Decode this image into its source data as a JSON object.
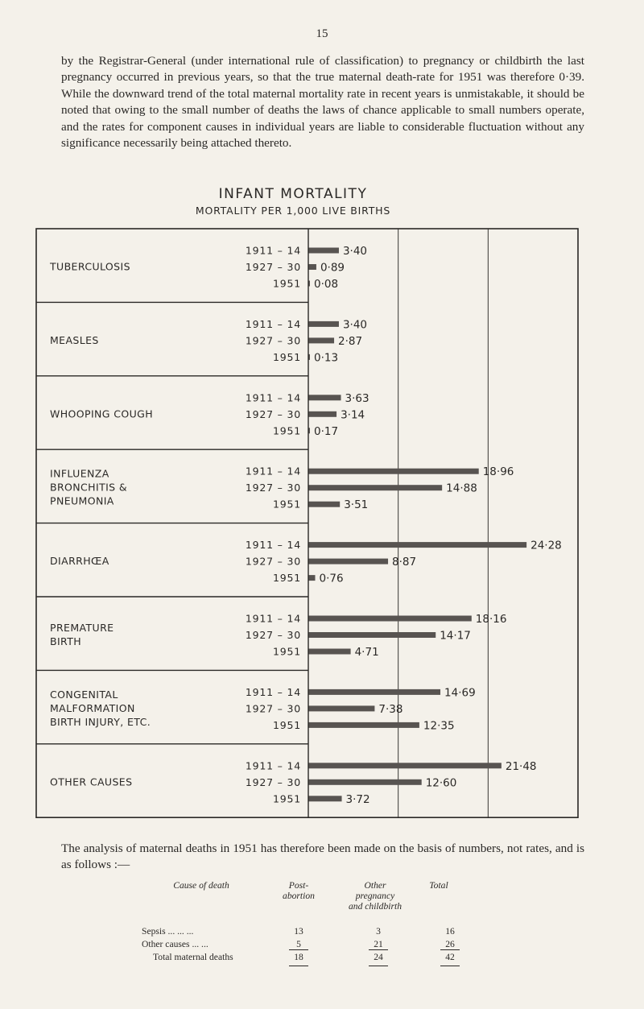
{
  "page_number": "15",
  "intro_paragraph": "by the Registrar-General (under international rule of classification) to pregnancy or childbirth the last pregnancy occurred in previous years, so that the true maternal death-rate for 1951 was therefore 0·39. While the downward trend of the total maternal mortality rate in recent years is unmistakable, it should be noted that owing to the small number of deaths the laws of chance applicable to small numbers operate, and the rates for component causes in individual years are liable to considerable fluctuation without any significance necessarily being attached thereto.",
  "chart_data": {
    "type": "bar",
    "orientation": "horizontal",
    "title": "INFANT MORTALITY",
    "subtitle": "MORTALITY PER 1,000 LIVE BIRTHS",
    "periods": [
      "1911 – 14",
      "1927 – 30",
      "1951"
    ],
    "xlim": [
      0,
      30
    ],
    "xticks": [
      0,
      10,
      20,
      30
    ],
    "grid": true,
    "bar_color": "#585451",
    "groups": [
      {
        "name": "TUBERCULOSIS",
        "values": [
          3.4,
          0.89,
          0.08
        ],
        "labels": [
          "3·40",
          "0·89",
          "0·08"
        ]
      },
      {
        "name": "MEASLES",
        "values": [
          3.4,
          2.87,
          0.13
        ],
        "labels": [
          "3·40",
          "2·87",
          "0·13"
        ]
      },
      {
        "name": "WHOOPING COUGH",
        "values": [
          3.63,
          3.14,
          0.17
        ],
        "labels": [
          "3·63",
          "3·14",
          "0·17"
        ]
      },
      {
        "name": "INFLUENZA\nBRONCHITIS &\nPNEUMONIA",
        "values": [
          18.96,
          14.88,
          3.51
        ],
        "labels": [
          "18·96",
          "14·88",
          "3·51"
        ]
      },
      {
        "name": "DIARRHŒA",
        "values": [
          24.28,
          8.87,
          0.76
        ],
        "labels": [
          "24·28",
          "8·87",
          "0·76"
        ]
      },
      {
        "name": "PREMATURE\nBIRTH",
        "values": [
          18.16,
          14.17,
          4.71
        ],
        "labels": [
          "18·16",
          "14·17",
          "4·71"
        ]
      },
      {
        "name": "CONGENITAL\nMALFORMATION\nBIRTH INJURY, ETC.",
        "values": [
          14.69,
          7.38,
          12.35
        ],
        "labels": [
          "14·69",
          "7·38",
          "12·35"
        ]
      },
      {
        "name": "OTHER CAUSES",
        "values": [
          21.48,
          12.6,
          3.72
        ],
        "labels": [
          "21·48",
          "12·60",
          "3·72"
        ]
      }
    ]
  },
  "outro_paragraph": "The analysis of maternal deaths in 1951 has therefore been made on the basis of numbers, not rates, and is as follows :—",
  "table": {
    "headers": {
      "cause": "Cause of death",
      "post_abortion": "Post-\nabortion",
      "other": "Other\npregnancy\nand childbirth",
      "total": "Total"
    },
    "rows": [
      {
        "cause": "Sepsis ... ... ...",
        "post_abortion": "13",
        "other": "3",
        "total": "16"
      },
      {
        "cause": "Other causes ... ...",
        "post_abortion": "5",
        "other": "21",
        "total": "26"
      }
    ],
    "total_row": {
      "cause": "Total maternal deaths",
      "post_abortion": "18",
      "other": "24",
      "total": "42"
    }
  }
}
